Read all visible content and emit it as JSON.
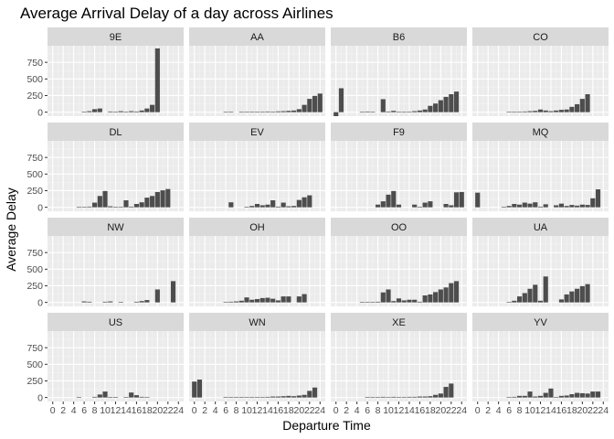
{
  "chart_data": {
    "type": "bar",
    "title": "Average Arrival Delay of a day across Airlines",
    "xlabel": "Departure Time",
    "ylabel": "Average Delay",
    "xlim": [
      -1,
      25
    ],
    "ylim": [
      -60,
      1000
    ],
    "x_ticks": [
      0,
      2,
      4,
      6,
      8,
      10,
      12,
      14,
      16,
      18,
      20,
      22,
      24
    ],
    "y_ticks": [
      0,
      250,
      500,
      750
    ],
    "y_tick_labels": [
      "0",
      "250",
      "500",
      "750"
    ],
    "x_tick_labels": [
      "0",
      "2",
      "4",
      "6",
      "8",
      "10",
      "12",
      "14",
      "16",
      "18",
      "20",
      "22",
      "24"
    ],
    "grid": true,
    "panel_background": "#ebebeb",
    "strip_background": "#d9d9d9",
    "bar_color": "#4d4d4d",
    "facets": [
      {
        "name": "9E",
        "bars": [
          [
            6,
            5
          ],
          [
            7,
            15
          ],
          [
            8,
            45
          ],
          [
            9,
            55
          ],
          [
            11,
            10
          ],
          [
            12,
            5
          ],
          [
            13,
            15
          ],
          [
            14,
            5
          ],
          [
            15,
            15
          ],
          [
            16,
            10
          ],
          [
            17,
            25
          ],
          [
            18,
            55
          ],
          [
            19,
            110
          ],
          [
            20,
            960
          ]
        ]
      },
      {
        "name": "AA",
        "bars": [
          [
            6,
            3
          ],
          [
            7,
            4
          ],
          [
            9,
            3
          ],
          [
            10,
            4
          ],
          [
            11,
            5
          ],
          [
            12,
            4
          ],
          [
            13,
            6
          ],
          [
            14,
            10
          ],
          [
            15,
            8
          ],
          [
            16,
            12
          ],
          [
            17,
            15
          ],
          [
            18,
            20
          ],
          [
            19,
            25
          ],
          [
            20,
            45
          ],
          [
            21,
            110
          ],
          [
            22,
            200
          ],
          [
            23,
            245
          ],
          [
            24,
            280
          ]
        ]
      },
      {
        "name": "B6",
        "bars": [
          [
            0,
            -60
          ],
          [
            1,
            360
          ],
          [
            5,
            3
          ],
          [
            6,
            10
          ],
          [
            7,
            8
          ],
          [
            9,
            195
          ],
          [
            10,
            10
          ],
          [
            11,
            20
          ],
          [
            12,
            5
          ],
          [
            13,
            3
          ],
          [
            14,
            5
          ],
          [
            15,
            15
          ],
          [
            16,
            25
          ],
          [
            17,
            40
          ],
          [
            18,
            95
          ],
          [
            19,
            130
          ],
          [
            20,
            180
          ],
          [
            21,
            230
          ],
          [
            22,
            270
          ],
          [
            23,
            310
          ]
        ]
      },
      {
        "name": "CO",
        "bars": [
          [
            6,
            5
          ],
          [
            7,
            3
          ],
          [
            8,
            8
          ],
          [
            9,
            10
          ],
          [
            10,
            15
          ],
          [
            11,
            20
          ],
          [
            12,
            40
          ],
          [
            13,
            25
          ],
          [
            14,
            15
          ],
          [
            15,
            25
          ],
          [
            16,
            35
          ],
          [
            17,
            40
          ],
          [
            18,
            80
          ],
          [
            19,
            120
          ],
          [
            20,
            200
          ],
          [
            21,
            270
          ]
        ]
      },
      {
        "name": "DL",
        "bars": [
          [
            5,
            3
          ],
          [
            6,
            3
          ],
          [
            7,
            10
          ],
          [
            8,
            70
          ],
          [
            9,
            170
          ],
          [
            10,
            245
          ],
          [
            11,
            15
          ],
          [
            12,
            5
          ],
          [
            13,
            5
          ],
          [
            14,
            105
          ],
          [
            15,
            10
          ],
          [
            16,
            50
          ],
          [
            17,
            75
          ],
          [
            18,
            145
          ],
          [
            19,
            170
          ],
          [
            20,
            230
          ],
          [
            21,
            255
          ],
          [
            22,
            275
          ]
        ]
      },
      {
        "name": "EV",
        "bars": [
          [
            7,
            75
          ],
          [
            10,
            5
          ],
          [
            11,
            20
          ],
          [
            12,
            50
          ],
          [
            13,
            30
          ],
          [
            14,
            40
          ],
          [
            15,
            105
          ],
          [
            16,
            10
          ],
          [
            17,
            70
          ],
          [
            18,
            15
          ],
          [
            19,
            20
          ],
          [
            20,
            110
          ],
          [
            21,
            150
          ],
          [
            22,
            180
          ]
        ]
      },
      {
        "name": "F9",
        "bars": [
          [
            8,
            40
          ],
          [
            9,
            90
          ],
          [
            10,
            190
          ],
          [
            11,
            245
          ],
          [
            12,
            40
          ],
          [
            15,
            40
          ],
          [
            16,
            5
          ],
          [
            17,
            70
          ],
          [
            18,
            90
          ],
          [
            21,
            50
          ],
          [
            22,
            30
          ],
          [
            23,
            225
          ],
          [
            24,
            230
          ]
        ]
      },
      {
        "name": "MQ",
        "bars": [
          [
            0,
            220
          ],
          [
            5,
            5
          ],
          [
            6,
            20
          ],
          [
            7,
            50
          ],
          [
            8,
            40
          ],
          [
            9,
            70
          ],
          [
            10,
            55
          ],
          [
            11,
            75
          ],
          [
            12,
            10
          ],
          [
            13,
            45
          ],
          [
            15,
            30
          ],
          [
            16,
            55
          ],
          [
            17,
            20
          ],
          [
            18,
            35
          ],
          [
            19,
            25
          ],
          [
            20,
            40
          ],
          [
            21,
            35
          ],
          [
            22,
            135
          ],
          [
            23,
            270
          ]
        ]
      },
      {
        "name": "NW",
        "bars": [
          [
            6,
            15
          ],
          [
            7,
            10
          ],
          [
            10,
            10
          ],
          [
            11,
            15
          ],
          [
            13,
            5
          ],
          [
            16,
            10
          ],
          [
            17,
            20
          ],
          [
            18,
            35
          ],
          [
            20,
            195
          ],
          [
            23,
            320
          ]
        ]
      },
      {
        "name": "OH",
        "bars": [
          [
            6,
            5
          ],
          [
            7,
            10
          ],
          [
            8,
            15
          ],
          [
            9,
            25
          ],
          [
            10,
            75
          ],
          [
            11,
            40
          ],
          [
            12,
            50
          ],
          [
            13,
            65
          ],
          [
            14,
            70
          ],
          [
            15,
            55
          ],
          [
            16,
            30
          ],
          [
            17,
            90
          ],
          [
            18,
            90
          ],
          [
            20,
            90
          ],
          [
            21,
            125
          ]
        ]
      },
      {
        "name": "OO",
        "bars": [
          [
            5,
            3
          ],
          [
            6,
            5
          ],
          [
            7,
            8
          ],
          [
            8,
            10
          ],
          [
            9,
            150
          ],
          [
            10,
            195
          ],
          [
            11,
            20
          ],
          [
            12,
            60
          ],
          [
            13,
            30
          ],
          [
            14,
            40
          ],
          [
            15,
            40
          ],
          [
            16,
            10
          ],
          [
            17,
            105
          ],
          [
            18,
            120
          ],
          [
            19,
            155
          ],
          [
            20,
            195
          ],
          [
            21,
            225
          ],
          [
            22,
            290
          ],
          [
            23,
            320
          ]
        ]
      },
      {
        "name": "UA",
        "bars": [
          [
            6,
            5
          ],
          [
            7,
            25
          ],
          [
            8,
            90
          ],
          [
            9,
            140
          ],
          [
            10,
            205
          ],
          [
            11,
            265
          ],
          [
            12,
            25
          ],
          [
            13,
            390
          ],
          [
            16,
            45
          ],
          [
            17,
            120
          ],
          [
            18,
            165
          ],
          [
            19,
            205
          ],
          [
            20,
            245
          ],
          [
            21,
            275
          ]
        ]
      },
      {
        "name": "US",
        "bars": [
          [
            5,
            5
          ],
          [
            8,
            10
          ],
          [
            9,
            45
          ],
          [
            10,
            90
          ],
          [
            11,
            5
          ],
          [
            12,
            5
          ],
          [
            14,
            5
          ],
          [
            15,
            75
          ],
          [
            16,
            35
          ],
          [
            17,
            10
          ],
          [
            18,
            5
          ]
        ]
      },
      {
        "name": "WN",
        "bars": [
          [
            0,
            240
          ],
          [
            1,
            270
          ],
          [
            6,
            5
          ],
          [
            7,
            5
          ],
          [
            8,
            5
          ],
          [
            9,
            5
          ],
          [
            10,
            5
          ],
          [
            11,
            5
          ],
          [
            12,
            5
          ],
          [
            13,
            5
          ],
          [
            14,
            10
          ],
          [
            15,
            15
          ],
          [
            16,
            15
          ],
          [
            17,
            20
          ],
          [
            18,
            25
          ],
          [
            19,
            20
          ],
          [
            20,
            30
          ],
          [
            21,
            40
          ],
          [
            22,
            100
          ],
          [
            23,
            150
          ]
        ]
      },
      {
        "name": "XE",
        "bars": [
          [
            6,
            5
          ],
          [
            7,
            5
          ],
          [
            8,
            5
          ],
          [
            9,
            10
          ],
          [
            10,
            5
          ],
          [
            11,
            10
          ],
          [
            12,
            5
          ],
          [
            13,
            5
          ],
          [
            14,
            10
          ],
          [
            15,
            10
          ],
          [
            16,
            15
          ],
          [
            17,
            15
          ],
          [
            18,
            20
          ],
          [
            19,
            40
          ],
          [
            20,
            60
          ],
          [
            21,
            160
          ],
          [
            22,
            210
          ]
        ]
      },
      {
        "name": "YV",
        "bars": [
          [
            6,
            5
          ],
          [
            7,
            10
          ],
          [
            8,
            25
          ],
          [
            9,
            25
          ],
          [
            10,
            90
          ],
          [
            11,
            15
          ],
          [
            12,
            25
          ],
          [
            13,
            70
          ],
          [
            14,
            135
          ],
          [
            15,
            5
          ],
          [
            16,
            25
          ],
          [
            17,
            30
          ],
          [
            18,
            50
          ],
          [
            19,
            70
          ],
          [
            20,
            65
          ],
          [
            21,
            60
          ],
          [
            22,
            90
          ],
          [
            23,
            90
          ]
        ]
      }
    ]
  }
}
